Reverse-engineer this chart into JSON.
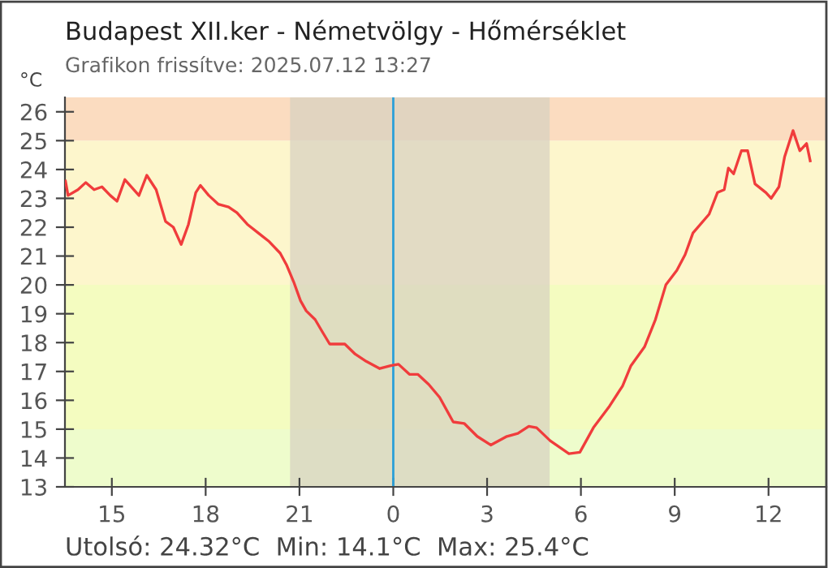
{
  "chart_data": {
    "type": "line",
    "title": "Budapest XII.ker - Németvölgy - Hőmérséklet",
    "subtitle": "Grafikon frissítve: 2025.07.12 13:27",
    "ylabel": "°C",
    "annotations": [
      "Utolsó: 24.32°C  Min: 14.1°C  Max: 25.4°C"
    ],
    "series": [
      {
        "color": "#f03c3c",
        "x": [
          "2025-07-11T13:31",
          "2025-07-11T13:36",
          "2025-07-11T13:55",
          "2025-07-11T14:10",
          "2025-07-11T14:26",
          "2025-07-11T14:41",
          "2025-07-11T14:57",
          "2025-07-11T15:10",
          "2025-07-11T15:25",
          "2025-07-11T15:52",
          "2025-07-11T16:07",
          "2025-07-11T16:25",
          "2025-07-11T16:43",
          "2025-07-11T16:58",
          "2025-07-11T17:13",
          "2025-07-11T17:27",
          "2025-07-11T17:41",
          "2025-07-11T17:50",
          "2025-07-11T18:06",
          "2025-07-11T18:24",
          "2025-07-11T18:44",
          "2025-07-11T19:00",
          "2025-07-11T19:20",
          "2025-07-11T19:41",
          "2025-07-11T20:02",
          "2025-07-11T20:23",
          "2025-07-11T20:35",
          "2025-07-11T20:49",
          "2025-07-11T21:02",
          "2025-07-11T21:13",
          "2025-07-11T21:30",
          "2025-07-11T21:43",
          "2025-07-11T21:58",
          "2025-07-11T22:27",
          "2025-07-11T22:47",
          "2025-07-11T23:08",
          "2025-07-11T23:34",
          "2025-07-11T23:55",
          "2025-07-12T00:10",
          "2025-07-12T00:31",
          "2025-07-12T00:47",
          "2025-07-12T01:08",
          "2025-07-12T01:29",
          "2025-07-12T01:55",
          "2025-07-12T02:16",
          "2025-07-12T02:41",
          "2025-07-12T03:07",
          "2025-07-12T03:38",
          "2025-07-12T03:59",
          "2025-07-12T04:20",
          "2025-07-12T04:35",
          "2025-07-12T05:01",
          "2025-07-12T05:37",
          "2025-07-12T05:58",
          "2025-07-12T06:24",
          "2025-07-12T06:55",
          "2025-07-12T07:20",
          "2025-07-12T07:36",
          "2025-07-12T08:02",
          "2025-07-12T08:23",
          "2025-07-12T08:43",
          "2025-07-12T09:04",
          "2025-07-12T09:20",
          "2025-07-12T09:35",
          "2025-07-12T10:06",
          "2025-07-12T10:22",
          "2025-07-12T10:35",
          "2025-07-12T10:43",
          "2025-07-12T10:53",
          "2025-07-12T11:08",
          "2025-07-12T11:20",
          "2025-07-12T11:34",
          "2025-07-12T11:55",
          "2025-07-12T12:05",
          "2025-07-12T12:20",
          "2025-07-12T12:31",
          "2025-07-12T12:47",
          "2025-07-12T13:00",
          "2025-07-12T13:13",
          "2025-07-12T13:20"
        ],
        "values": [
          23.6,
          23.1,
          23.3,
          23.55,
          23.3,
          23.4,
          23.1,
          22.9,
          23.65,
          23.1,
          23.8,
          23.3,
          22.2,
          22.0,
          21.4,
          22.1,
          23.2,
          23.45,
          23.1,
          22.8,
          22.7,
          22.5,
          22.1,
          21.8,
          21.5,
          21.1,
          20.7,
          20.1,
          19.45,
          19.1,
          18.8,
          18.4,
          17.95,
          17.95,
          17.6,
          17.35,
          17.1,
          17.2,
          17.25,
          16.9,
          16.9,
          16.55,
          16.1,
          15.25,
          15.2,
          14.75,
          14.45,
          14.75,
          14.85,
          15.1,
          15.05,
          14.6,
          14.15,
          14.2,
          15.05,
          15.8,
          16.5,
          17.2,
          17.85,
          18.8,
          20.0,
          20.5,
          21.05,
          21.8,
          22.45,
          23.2,
          23.3,
          24.05,
          23.85,
          24.65,
          24.65,
          23.5,
          23.2,
          23.0,
          23.4,
          24.45,
          25.35,
          24.65,
          24.9,
          24.3
        ]
      }
    ],
    "xlim": [
      "2025-07-11T13:30",
      "2025-07-12T13:51"
    ],
    "xticks": [
      {
        "value": "2025-07-11T15:00",
        "label": "15"
      },
      {
        "value": "2025-07-11T18:00",
        "label": "18"
      },
      {
        "value": "2025-07-11T21:00",
        "label": "21"
      },
      {
        "value": "2025-07-12T00:00",
        "label": "0"
      },
      {
        "value": "2025-07-12T03:00",
        "label": "3"
      },
      {
        "value": "2025-07-12T06:00",
        "label": "6"
      },
      {
        "value": "2025-07-12T09:00",
        "label": "9"
      },
      {
        "value": "2025-07-12T12:00",
        "label": "12"
      }
    ],
    "ylim": [
      13,
      26.5
    ],
    "yticks": [
      13,
      14,
      15,
      16,
      17,
      18,
      19,
      20,
      21,
      22,
      23,
      24,
      25,
      26
    ],
    "bands": [
      {
        "axis": "y",
        "from": 13,
        "to": 15,
        "color": "#eefccc"
      },
      {
        "axis": "y",
        "from": 15,
        "to": 20,
        "color": "#f4fcc0"
      },
      {
        "axis": "y",
        "from": 20,
        "to": 25,
        "color": "#fdf6cc"
      },
      {
        "axis": "y",
        "from": 25,
        "to": 26.5,
        "color": "#fbdcc0"
      },
      {
        "axis": "x",
        "from": "2025-07-11T20:42",
        "to": "2025-07-12T05:00",
        "color": "#d6d0c0"
      }
    ],
    "ref_lines": [
      {
        "axis": "x",
        "value": "2025-07-12T00:00",
        "color": "#2a9fd8",
        "line_style": "solid"
      }
    ],
    "grid": false,
    "legend": false,
    "marker": "none",
    "line_style": "solid"
  }
}
